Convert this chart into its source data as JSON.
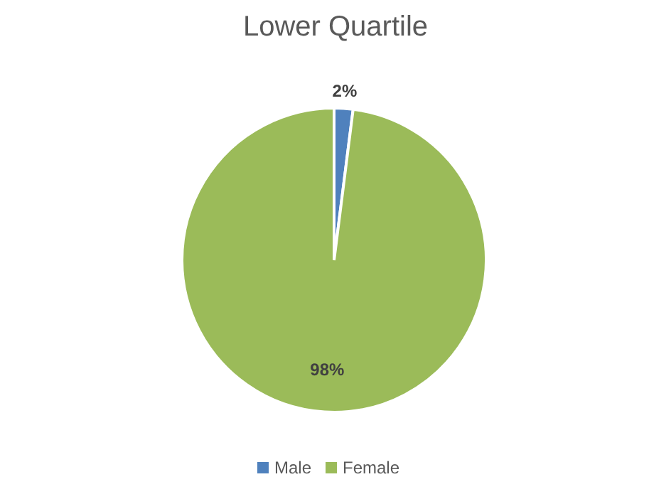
{
  "chart_data": {
    "type": "pie",
    "title": "Lower Quartile",
    "categories": [
      "Male",
      "Female"
    ],
    "values": [
      2,
      98
    ],
    "colors": [
      "#4f81bd",
      "#9bbb59"
    ],
    "value_labels": [
      "2%",
      "98%"
    ],
    "legend": "bottom"
  }
}
